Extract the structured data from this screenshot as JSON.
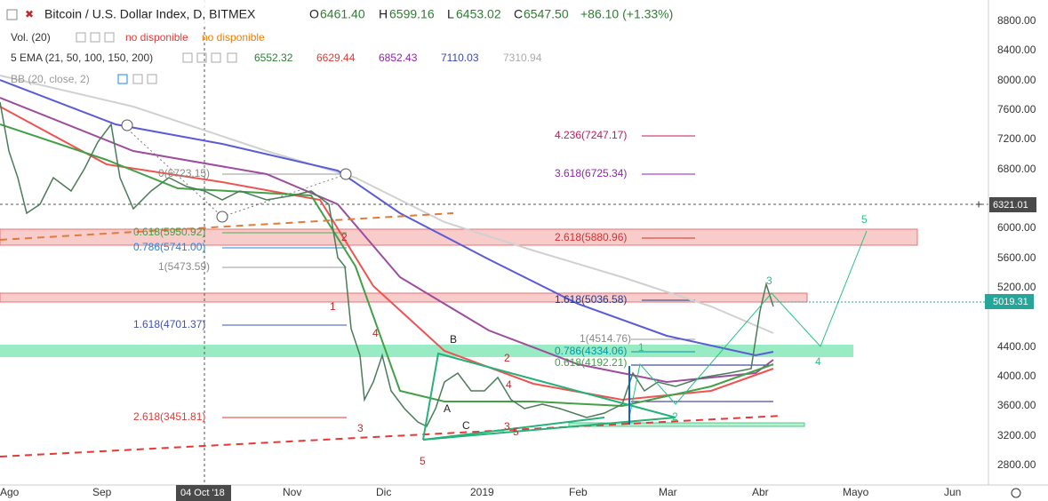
{
  "header": {
    "symbol": "Bitcoin / U.S. Dollar Index, D, BITMEX",
    "ohlc": [
      {
        "key": "O",
        "value": "6461.40"
      },
      {
        "key": "H",
        "value": "6599.16"
      },
      {
        "key": "L",
        "value": "6453.02"
      },
      {
        "key": "C",
        "value": "6547.50"
      }
    ],
    "change": "+86.10 (+1.33%)"
  },
  "indicators": [
    {
      "name": "Vol. (20)",
      "values": [
        "no disponible",
        "no disponible"
      ]
    },
    {
      "name": "5 EMA (21, 50, 100, 150, 200)",
      "values": [
        "6552.32",
        "6629.44",
        "6852.43",
        "7110.03",
        "7310.94"
      ]
    },
    {
      "name": "BB (20, close, 2)"
    }
  ],
  "price_axis": {
    "labels": [
      "8800.00",
      "8400.00",
      "8000.00",
      "7600.00",
      "7200.00",
      "6800.00",
      "6000.00",
      "5600.00",
      "5200.00",
      "4400.00",
      "4000.00",
      "3600.00",
      "3200.00",
      "2800.00"
    ],
    "crosshair": "6321.01",
    "last": "5019.31"
  },
  "time_axis": {
    "labels": [
      "Ago",
      "Sep",
      "Nov",
      "Dic",
      "2019",
      "Feb",
      "Mar",
      "Abr",
      "Mayo",
      "Jun"
    ],
    "crosshair": "04 Oct '18"
  },
  "fib_labels": [
    "0(6723.15)",
    "0.618(5950.92)",
    "0.786(5741.00)",
    "1(5473.59)",
    "1.618(4701.37)",
    "2.618(3451.81)",
    "4.236(7247.17)",
    "3.618(6725.34)",
    "2.618(5880.96)",
    "1.618(5036.58)",
    "1(4514.76)",
    "0.786(4334.06)",
    "0.618(4192.21)"
  ],
  "wave_labels": [
    "2",
    "1",
    "4",
    "3",
    "5",
    "B",
    "A",
    "C",
    "2",
    "4",
    "3",
    "5",
    "1",
    "2",
    "3",
    "4",
    "5"
  ]
}
